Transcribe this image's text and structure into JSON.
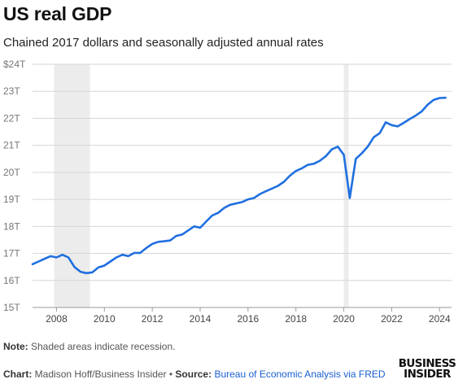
{
  "header": {
    "title": "US real GDP",
    "subtitle": "Chained 2017 dollars and seasonally adjusted annual rates"
  },
  "footer": {
    "note_label": "Note:",
    "note_text": " Shaded areas indicate recession.",
    "chart_label": "Chart:",
    "chart_credit": " Madison Hoff/Business Insider",
    "bullet": " • ",
    "source_label": "Source:",
    "source_text": " ",
    "source_link": "Bureau of Economic Analysis via FRED",
    "logo": [
      "BUSINESS",
      "INSIDER"
    ]
  },
  "chart_data": {
    "type": "line",
    "title": "US real GDP",
    "subtitle": "Chained 2017 dollars and seasonally adjusted annual rates",
    "ylim": [
      15,
      24
    ],
    "xlim": [
      2007.0,
      2024.5
    ],
    "y_ticks": [
      15,
      16,
      17,
      18,
      19,
      20,
      21,
      22,
      23,
      24
    ],
    "y_tick_labels": [
      "15T",
      "16T",
      "17T",
      "18T",
      "19T",
      "20T",
      "21T",
      "22T",
      "23T",
      "$24T"
    ],
    "x_ticks": [
      2008,
      2010,
      2012,
      2014,
      2016,
      2018,
      2020,
      2022,
      2024
    ],
    "x_tick_labels": [
      "2008",
      "2010",
      "2012",
      "2014",
      "2016",
      "2018",
      "2020",
      "2022",
      "2024"
    ],
    "grid": "horizontal",
    "line_color": "#1f6fe0",
    "recession_color": "#ececec",
    "recessions": [
      [
        2007.9,
        2009.4
      ],
      [
        2020.0,
        2020.2
      ]
    ],
    "x": [
      2007.0,
      2007.25,
      2007.5,
      2007.75,
      2008.0,
      2008.25,
      2008.5,
      2008.75,
      2009.0,
      2009.25,
      2009.5,
      2009.75,
      2010.0,
      2010.25,
      2010.5,
      2010.75,
      2011.0,
      2011.25,
      2011.5,
      2011.75,
      2012.0,
      2012.25,
      2012.5,
      2012.75,
      2013.0,
      2013.25,
      2013.5,
      2013.75,
      2014.0,
      2014.25,
      2014.5,
      2014.75,
      2015.0,
      2015.25,
      2015.5,
      2015.75,
      2016.0,
      2016.25,
      2016.5,
      2016.75,
      2017.0,
      2017.25,
      2017.5,
      2017.75,
      2018.0,
      2018.25,
      2018.5,
      2018.75,
      2019.0,
      2019.25,
      2019.5,
      2019.75,
      2020.0,
      2020.25,
      2020.5,
      2020.75,
      2021.0,
      2021.25,
      2021.5,
      2021.75,
      2022.0,
      2022.25,
      2022.5,
      2022.75,
      2023.0,
      2023.25,
      2023.5,
      2023.75,
      2024.0,
      2024.25
    ],
    "series": [
      {
        "values": [
          16.6,
          16.7,
          16.8,
          16.9,
          16.85,
          16.95,
          16.85,
          16.5,
          16.32,
          16.27,
          16.3,
          16.48,
          16.55,
          16.7,
          16.85,
          16.95,
          16.9,
          17.02,
          17.02,
          17.2,
          17.35,
          17.43,
          17.45,
          17.48,
          17.65,
          17.7,
          17.85,
          18.0,
          17.95,
          18.18,
          18.4,
          18.5,
          18.68,
          18.8,
          18.85,
          18.9,
          19.0,
          19.05,
          19.2,
          19.3,
          19.4,
          19.5,
          19.65,
          19.88,
          20.05,
          20.15,
          20.28,
          20.32,
          20.43,
          20.6,
          20.85,
          20.95,
          20.65,
          19.05,
          20.5,
          20.7,
          20.95,
          21.3,
          21.45,
          21.85,
          21.75,
          21.7,
          21.83,
          21.97,
          22.1,
          22.25,
          22.5,
          22.68,
          22.75,
          22.76
        ]
      }
    ]
  }
}
